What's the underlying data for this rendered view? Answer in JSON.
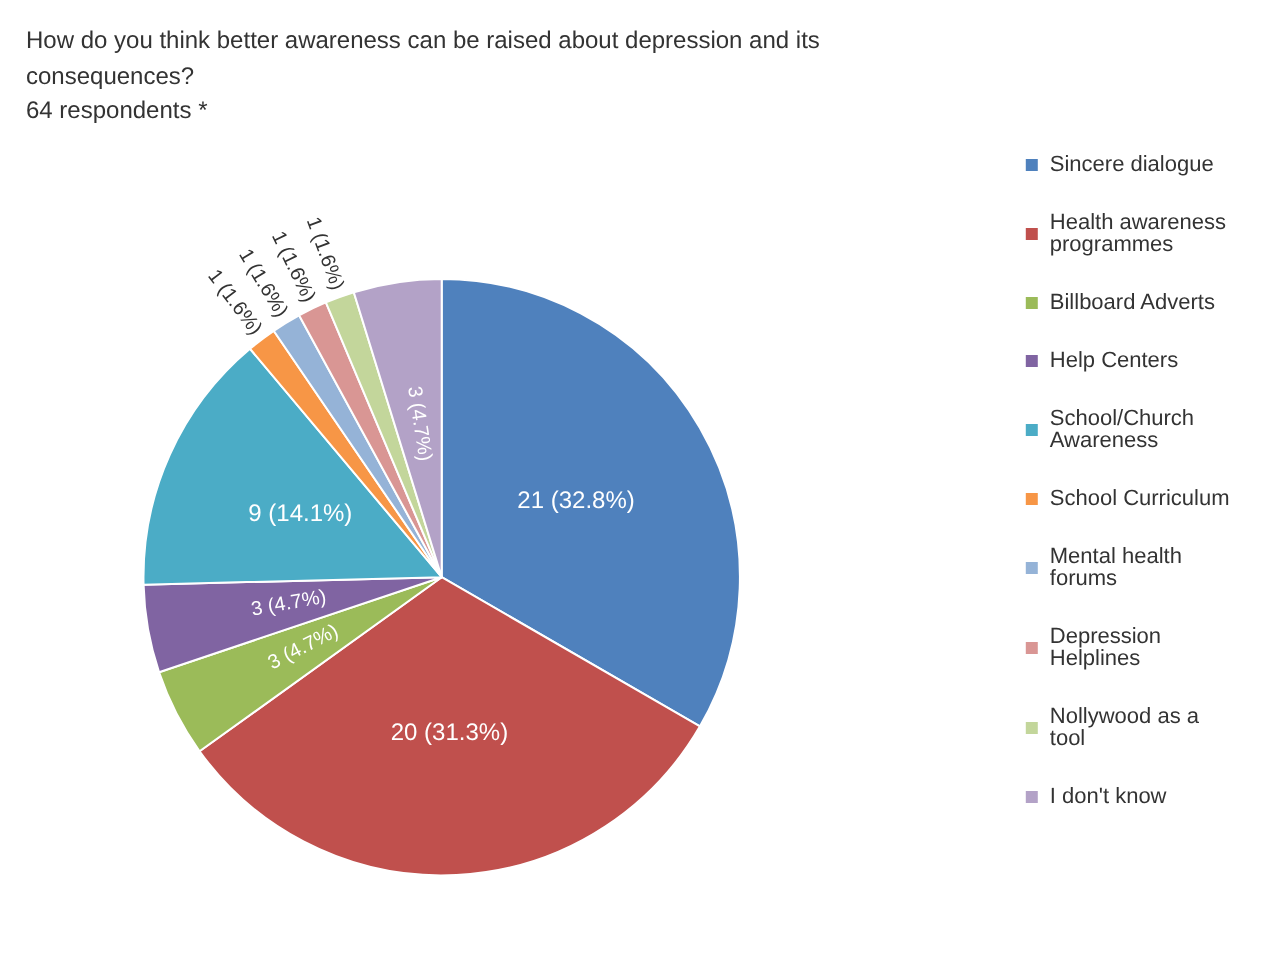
{
  "chart_data": {
    "type": "pie",
    "title": "How do you think better awareness can be raised about depression and its consequences?",
    "subtitle": "64 respondents *",
    "categories": [
      "Sincere dialogue",
      "Health awareness programmes",
      "Billboard Adverts",
      "Help Centers",
      "School/Church Awareness",
      "School Curriculum",
      "Mental health forums",
      "Depression Helplines",
      "Nollywood as a tool",
      "I don't know"
    ],
    "values": [
      21,
      20,
      3,
      3,
      9,
      1,
      1,
      1,
      1,
      3
    ],
    "value_labels": [
      "21 (32.8%)",
      "20 (31.3%)",
      "3 (4.7%)",
      "3 (4.7%)",
      "9 (14.1%)",
      "1 (1.6%)",
      "1 (1.6%)",
      "1 (1.6%)",
      "1 (1.6%)",
      "3 (4.7%)"
    ],
    "colors": [
      "#4f81bd",
      "#c0504d",
      "#9bbb59",
      "#8064a2",
      "#4bacc6",
      "#f79646",
      "#95b3d7",
      "#d99694",
      "#c3d69b",
      "#b3a2c7"
    ],
    "legend": "right"
  }
}
